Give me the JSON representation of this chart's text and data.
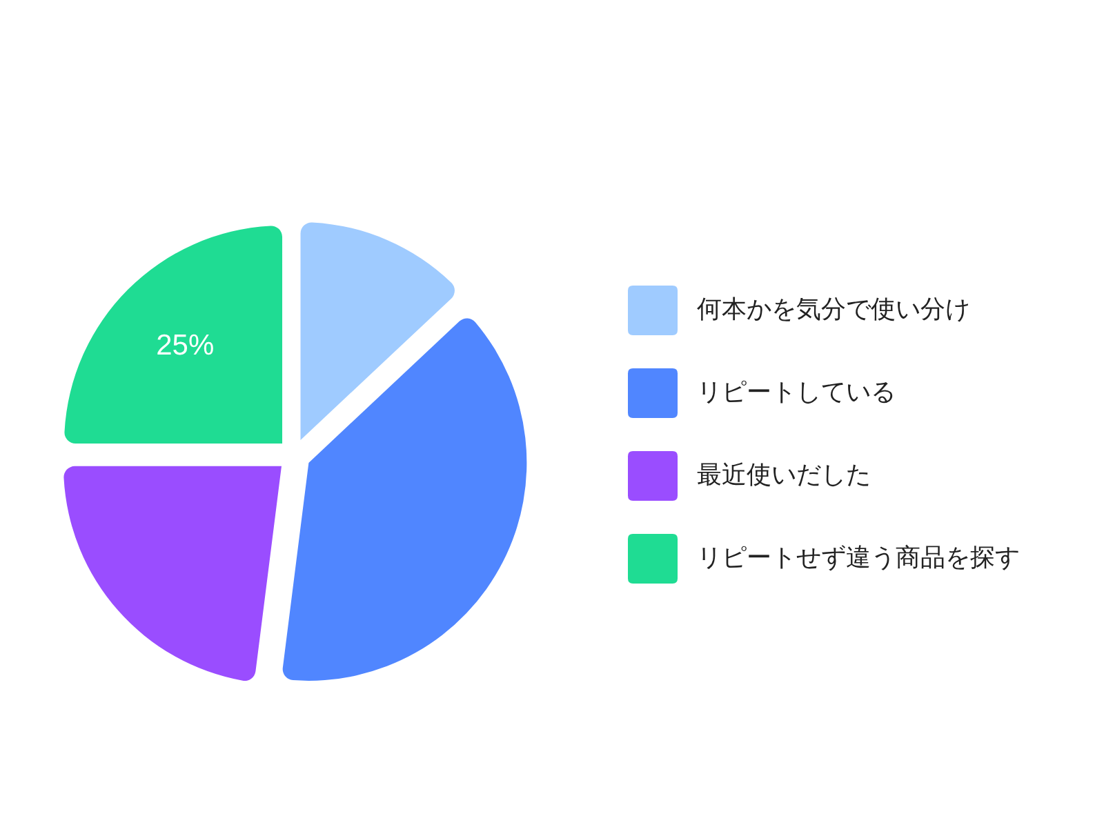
{
  "chart_data": {
    "type": "pie",
    "categories": [
      "何本かを気分で使い分け",
      "リピートしている",
      "最近使いだした",
      "リピートせず違う商品を探す"
    ],
    "values": [
      13,
      39,
      23,
      25
    ],
    "colors": [
      "#9fcbff",
      "#5086ff",
      "#9a4dff",
      "#1fdc93"
    ],
    "value_labels": [
      null,
      null,
      null,
      "25%"
    ],
    "legend": "right"
  }
}
